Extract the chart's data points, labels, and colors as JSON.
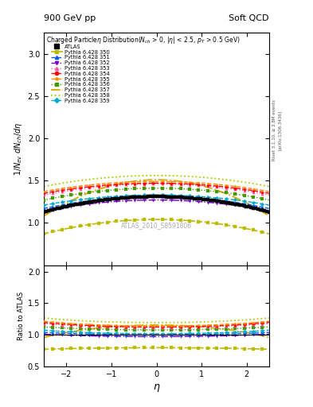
{
  "title_left": "900 GeV pp",
  "title_right": "Soft QCD",
  "main_title": "Charged Particle $\\eta$ Distribution($N_{ch}$ > 0, |$\\eta$| < 2.5, $p_T$ > 0.5 GeV)",
  "ylabel_main": "$1/N_{ev}$ $dN_{ch}/d\\eta$",
  "ylabel_ratio": "Ratio to ATLAS",
  "xlabel": "$\\eta$",
  "watermark": "ATLAS_2010_S8591806",
  "right_label_top": "Rivet 3.1.10, ≥ 2.8M events",
  "right_label_bot": "[arXiv:1306.3436]",
  "xlim": [
    -2.5,
    2.5
  ],
  "ylim_main": [
    0.5,
    3.25
  ],
  "ylim_ratio": [
    0.5,
    2.1
  ],
  "yticks_main": [
    1.0,
    1.5,
    2.0,
    2.5,
    3.0
  ],
  "yticks_ratio": [
    0.5,
    1.0,
    1.5,
    2.0
  ],
  "xticks": [
    -2,
    -1,
    0,
    1,
    2
  ],
  "series": [
    {
      "label": "ATLAS",
      "color": "#000000",
      "style": "data",
      "marker": "s",
      "zorder": 10,
      "lw": 1.0
    },
    {
      "label": "Pythia 6.428 350",
      "color": "#bbbb00",
      "style": "dashed",
      "marker": "s",
      "zorder": 2,
      "lw": 1.2
    },
    {
      "label": "Pythia 6.428 351",
      "color": "#0055ff",
      "style": "dashed",
      "marker": "^",
      "zorder": 5,
      "lw": 1.0
    },
    {
      "label": "Pythia 6.428 352",
      "color": "#7700cc",
      "style": "dashdot",
      "marker": "v",
      "zorder": 4,
      "lw": 1.0
    },
    {
      "label": "Pythia 6.428 353",
      "color": "#ff55aa",
      "style": "dotted",
      "marker": "^",
      "zorder": 6,
      "lw": 1.0
    },
    {
      "label": "Pythia 6.428 354",
      "color": "#ff0000",
      "style": "dashed",
      "marker": "o",
      "zorder": 7,
      "lw": 1.0
    },
    {
      "label": "Pythia 6.428 355",
      "color": "#ff8800",
      "style": "dashed",
      "marker": "*",
      "zorder": 8,
      "lw": 1.0
    },
    {
      "label": "Pythia 6.428 356",
      "color": "#449900",
      "style": "dotted",
      "marker": "s",
      "zorder": 3,
      "lw": 1.0
    },
    {
      "label": "Pythia 6.428 357",
      "color": "#ddaa00",
      "style": "dashdot",
      "marker": "none",
      "zorder": 1,
      "lw": 1.3
    },
    {
      "label": "Pythia 6.428 358",
      "color": "#aacc00",
      "style": "dotted",
      "marker": "none",
      "zorder": 1,
      "lw": 1.3
    },
    {
      "label": "Pythia 6.428 359",
      "color": "#00aacc",
      "style": "dashed",
      "marker": "D",
      "zorder": 9,
      "lw": 1.0
    }
  ]
}
